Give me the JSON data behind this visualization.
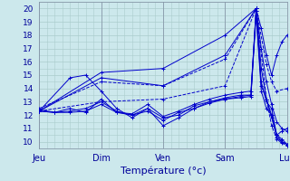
{
  "xlabel": "Température (°c)",
  "background_color": "#cce8ec",
  "grid_color": "#aacccc",
  "line_color": "#0000cc",
  "xlim": [
    0,
    96
  ],
  "ylim": [
    9.5,
    20.5
  ],
  "yticks": [
    10,
    11,
    12,
    13,
    14,
    15,
    16,
    17,
    18,
    19,
    20
  ],
  "xtick_positions": [
    0,
    24,
    48,
    72,
    96
  ],
  "xtick_labels": [
    "Jeu",
    "Dim",
    "Ven",
    "Sam",
    "Lun"
  ],
  "series": [
    {
      "x": [
        0,
        24,
        48,
        72,
        84,
        86,
        88,
        90,
        92,
        94,
        96
      ],
      "y": [
        12.3,
        15.2,
        15.5,
        18.0,
        20.0,
        18.5,
        16.5,
        15.0,
        16.5,
        17.5,
        18.0
      ],
      "style": "solid"
    },
    {
      "x": [
        0,
        24,
        48,
        72,
        84,
        86,
        88,
        90,
        92,
        94,
        96
      ],
      "y": [
        12.3,
        14.8,
        14.2,
        16.5,
        20.0,
        17.0,
        14.5,
        12.8,
        11.5,
        11.0,
        10.8
      ],
      "style": "solid"
    },
    {
      "x": [
        0,
        12,
        18,
        24,
        30,
        36,
        42,
        48,
        54,
        60,
        66,
        72,
        78,
        82,
        84,
        86,
        88,
        90,
        92,
        94,
        96
      ],
      "y": [
        12.3,
        14.8,
        15.0,
        13.8,
        12.5,
        11.8,
        12.5,
        11.2,
        11.8,
        12.5,
        13.0,
        13.3,
        13.5,
        13.5,
        20.0,
        15.5,
        13.2,
        12.0,
        10.5,
        10.0,
        9.8
      ],
      "style": "solid"
    },
    {
      "x": [
        0,
        6,
        12,
        18,
        24,
        30,
        36,
        42,
        48,
        54,
        60,
        66,
        72,
        78,
        82,
        84,
        86,
        88,
        90,
        92,
        94,
        96
      ],
      "y": [
        12.3,
        12.2,
        12.3,
        12.5,
        13.0,
        12.3,
        12.0,
        12.5,
        11.8,
        12.0,
        12.7,
        13.0,
        13.2,
        13.4,
        13.5,
        19.8,
        14.5,
        13.0,
        12.5,
        10.5,
        10.2,
        9.8
      ],
      "style": "solid"
    },
    {
      "x": [
        0,
        6,
        12,
        18,
        24,
        30,
        36,
        42,
        48,
        54,
        60,
        66,
        72,
        78,
        82,
        84,
        86,
        88,
        90,
        92,
        94,
        96
      ],
      "y": [
        12.3,
        12.2,
        12.2,
        12.3,
        12.8,
        12.2,
        12.0,
        12.3,
        11.6,
        12.2,
        12.5,
        12.9,
        13.2,
        13.3,
        13.4,
        19.5,
        13.8,
        12.5,
        12.0,
        10.3,
        10.0,
        9.8
      ],
      "style": "solid"
    },
    {
      "x": [
        0,
        6,
        12,
        18,
        24,
        30,
        36,
        42,
        48,
        54,
        60,
        66,
        72,
        78,
        82,
        84,
        86,
        88,
        90,
        92,
        94,
        96
      ],
      "y": [
        12.4,
        12.2,
        12.5,
        12.2,
        13.2,
        12.2,
        12.1,
        12.8,
        11.9,
        12.3,
        12.8,
        13.2,
        13.5,
        13.7,
        13.8,
        19.8,
        14.2,
        13.2,
        11.8,
        10.5,
        10.8,
        11.0
      ],
      "style": "solid"
    },
    {
      "x": [
        0,
        24,
        48,
        72,
        84,
        88,
        90,
        92,
        96
      ],
      "y": [
        12.5,
        14.5,
        14.2,
        16.2,
        20.0,
        15.8,
        14.5,
        13.8,
        14.0
      ],
      "style": "dashed"
    },
    {
      "x": [
        0,
        24,
        48,
        72,
        84,
        88,
        90,
        92,
        94,
        96
      ],
      "y": [
        12.3,
        13.0,
        13.2,
        14.2,
        20.0,
        13.2,
        11.2,
        10.2,
        9.9,
        9.7
      ],
      "style": "dashed"
    }
  ]
}
